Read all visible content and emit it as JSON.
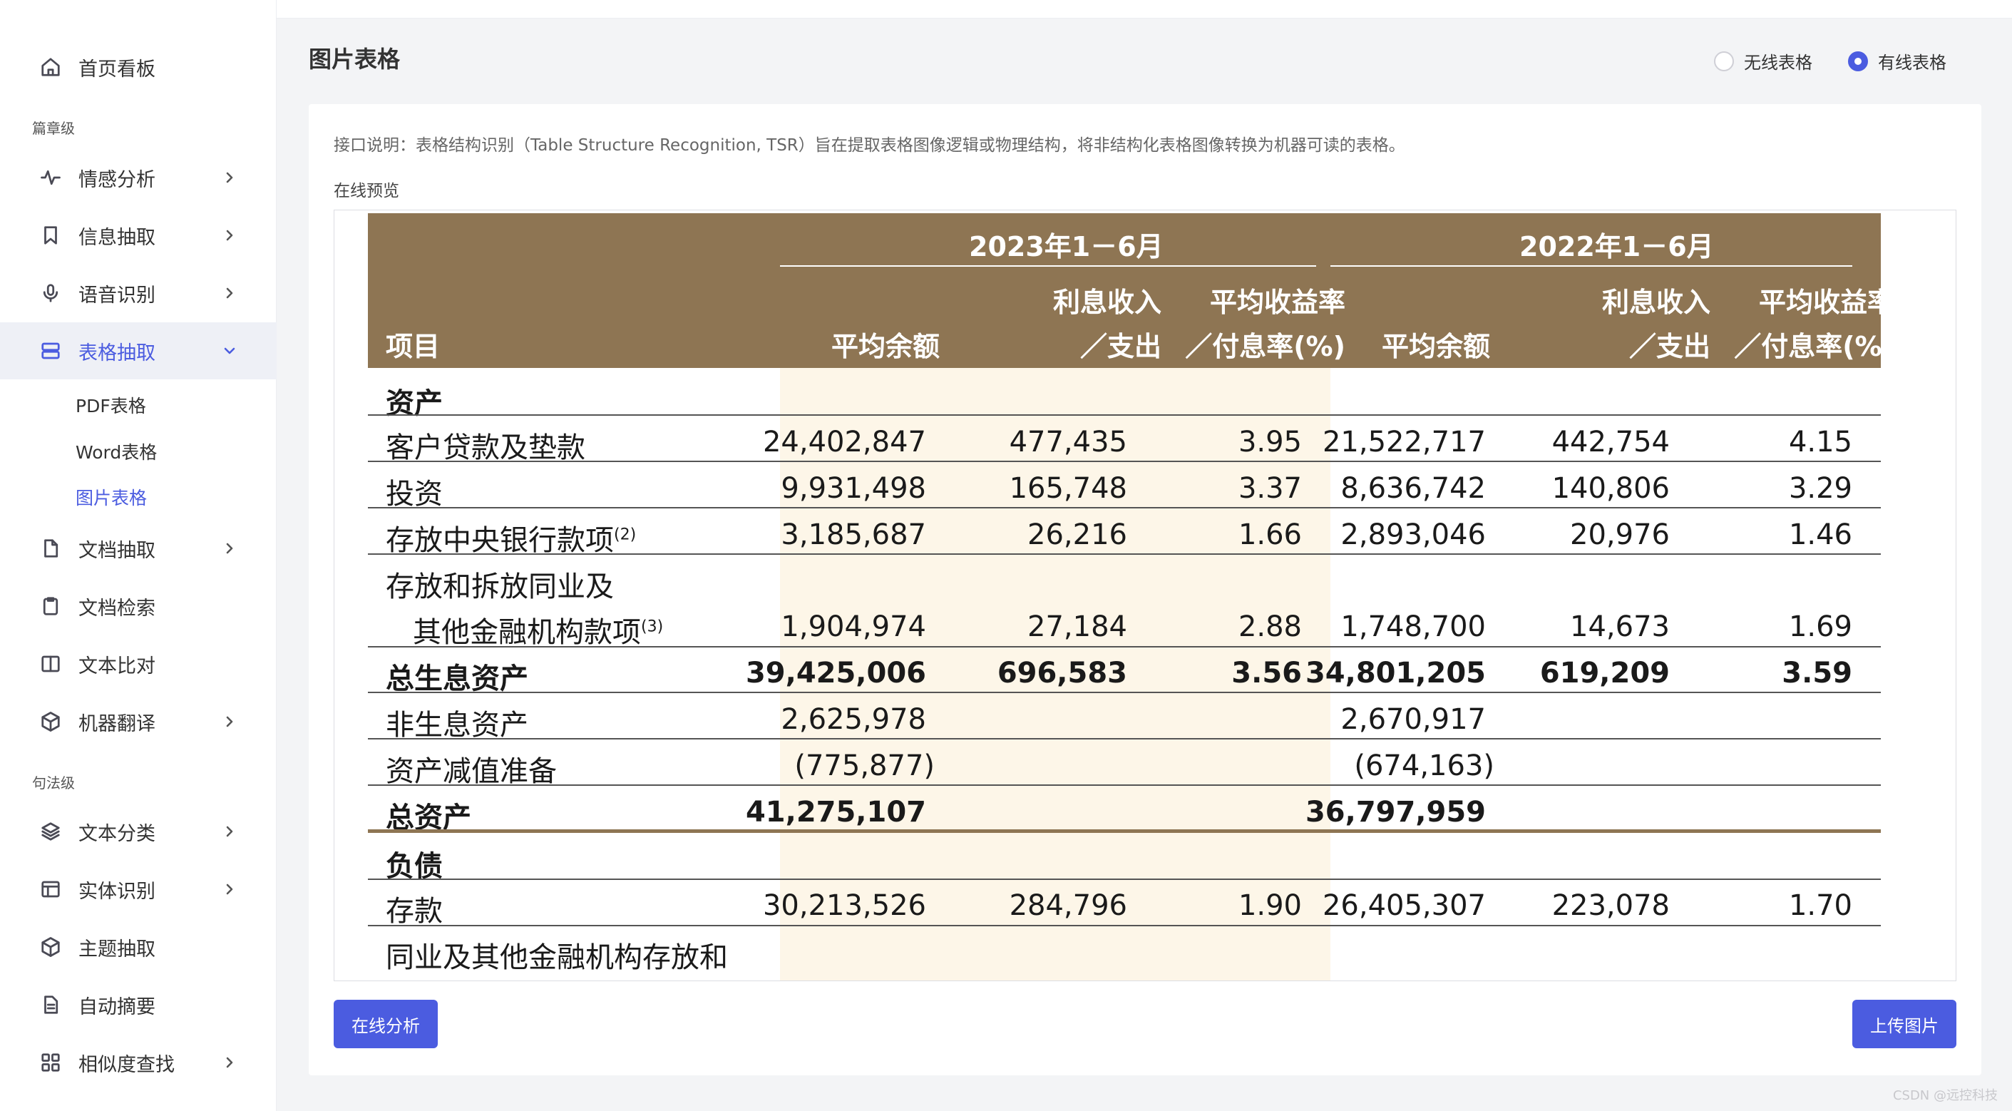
{
  "sidebar": {
    "home": "首页看板",
    "section_chapter": "篇章级",
    "sentiment": "情感分析",
    "info_extract": "信息抽取",
    "speech": "语音识别",
    "table_extract": "表格抽取",
    "sub_pdf": "PDF表格",
    "sub_word": "Word表格",
    "sub_image": "图片表格",
    "doc_extract": "文档抽取",
    "doc_search": "文档检索",
    "text_compare": "文本比对",
    "mt": "机器翻译",
    "section_sentence": "句法级",
    "text_classify": "文本分类",
    "ner": "实体识别",
    "topic": "主题抽取",
    "summary": "自动摘要",
    "similarity": "相似度查找"
  },
  "main": {
    "title": "图片表格",
    "radio_borderless": "无线表格",
    "radio_bordered": "有线表格",
    "selected_radio": "有线表格",
    "description": "接口说明：表格结构识别（Table Structure Recognition, TSR）旨在提取表格图像逻辑或物理结构，将非结构化表格图像转换为机器可读的表格。",
    "preview_label": "在线预览",
    "analyze_button": "在线分析",
    "upload_button": "上传图片",
    "watermark": "CSDN @远控科技"
  },
  "table": {
    "header_color": "#8e7553",
    "highlight_color": "#fdf6e8",
    "group_2023": "2023年1－6月",
    "group_2022": "2022年1－6月",
    "col_item": "项目",
    "col_avg_balance": "平均余额",
    "col_interest_l1": "利息收入",
    "col_interest_l2": "／支出",
    "col_yield_l1": "平均收益率",
    "col_yield_l2": "／付息率(%)",
    "sec_assets": "资产",
    "sec_liab": "负债",
    "rows": [
      {
        "label": "客户贷款及垫款",
        "sup": "",
        "a": "24,402,847",
        "b": "477,435",
        "c": "3.95",
        "d": "21,522,717",
        "e": "442,754",
        "f": "4.15"
      },
      {
        "label": "投资",
        "sup": "",
        "a": "9,931,498",
        "b": "165,748",
        "c": "3.37",
        "d": "8,636,742",
        "e": "140,806",
        "f": "3.29"
      },
      {
        "label": "存放中央银行款项",
        "sup": "(2)",
        "a": "3,185,687",
        "b": "26,216",
        "c": "1.66",
        "d": "2,893,046",
        "e": "20,976",
        "f": "1.46"
      },
      {
        "label": "其他金融机构款项",
        "label_pre": "存放和拆放同业及",
        "sup": "(3)",
        "a": "1,904,974",
        "b": "27,184",
        "c": "2.88",
        "d": "1,748,700",
        "e": "14,673",
        "f": "1.69"
      },
      {
        "label": "总生息资产",
        "sup": "",
        "a": "39,425,006",
        "b": "696,583",
        "c": "3.56",
        "d": "34,801,205",
        "e": "619,209",
        "f": "3.59"
      },
      {
        "label": "非生息资产",
        "sup": "",
        "a": "2,625,978",
        "b": "",
        "c": "",
        "d": "2,670,917",
        "e": "",
        "f": ""
      },
      {
        "label": "资产减值准备",
        "sup": "",
        "a": "(775,877)",
        "b": "",
        "c": "",
        "d": "(674,163)",
        "e": "",
        "f": ""
      },
      {
        "label": "总资产",
        "sup": "",
        "a": "41,275,107",
        "b": "",
        "c": "",
        "d": "36,797,959",
        "e": "",
        "f": ""
      },
      {
        "label": "存款",
        "sup": "",
        "a": "30,213,526",
        "b": "284,796",
        "c": "1.90",
        "d": "26,405,307",
        "e": "223,078",
        "f": "1.70"
      },
      {
        "label": "同业及其他金融机构存放和",
        "sup": "",
        "a": "",
        "b": "",
        "c": "",
        "d": "",
        "e": "",
        "f": ""
      }
    ]
  }
}
